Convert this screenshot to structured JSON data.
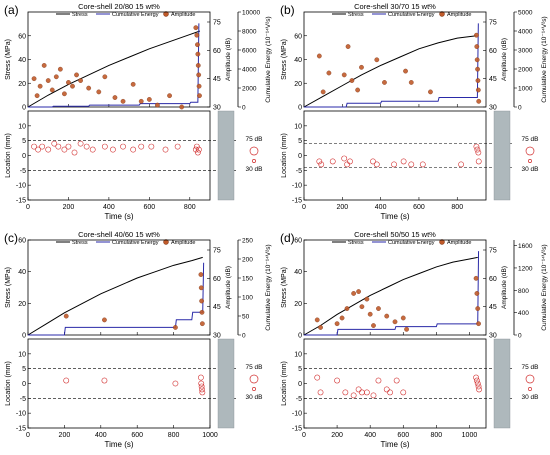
{
  "figure": {
    "panels": [
      {
        "label": "(a)",
        "title": "Core-shell 20/80 15 wt%"
      },
      {
        "label": "(b)",
        "title": "Core-shell 30/70 15 wt%"
      },
      {
        "label": "(c)",
        "title": "Core-shell 40/60 15 wt%"
      },
      {
        "label": "(d)",
        "title": "Core-shell 50/50 15 wt%"
      }
    ],
    "legend": {
      "stress": "Stress",
      "energy": "Cumulative Energy",
      "amplitude": "Amplitude"
    },
    "labels": {
      "stress_axis": "Stress (MPa)",
      "amplitude_axis": "Amplitude (dB)",
      "energy_axis": "Cumulative Energy (10⁻¹⁴V²s)",
      "location_axis": "Location (mm)",
      "time_axis": "Time (s)",
      "size_high": "75 dB",
      "size_low": "30 dB"
    },
    "colors": {
      "stress": "#000000",
      "energy": "#2a2aa8",
      "amp_fill": "#c05a2a",
      "amp_edge": "#d23030",
      "dashed": "#000000"
    }
  },
  "chart_data": [
    {
      "type": "scatter",
      "title": "Core-shell 20/80 15 wt%",
      "xlabel": "Time (s)",
      "xlim": [
        0,
        900
      ],
      "xticks": [
        0,
        200,
        400,
        600,
        800
      ],
      "stress_ylim": [
        0,
        80
      ],
      "stress_ticks": [
        0,
        20,
        40,
        60
      ],
      "amp_ticks": [
        30,
        45,
        60,
        75
      ],
      "energy_ylim": [
        0,
        10000
      ],
      "energy_ticks": [
        0,
        2000,
        4000,
        6000,
        8000,
        10000
      ],
      "stress_curve": {
        "x": [
          0,
          100,
          200,
          300,
          400,
          500,
          600,
          700,
          800,
          850
        ],
        "y": [
          0,
          10,
          19,
          27,
          35,
          42,
          49,
          55,
          61,
          64
        ]
      },
      "energy_curve": {
        "x": [
          0,
          120,
          125,
          300,
          305,
          550,
          555,
          800,
          805,
          840,
          845
        ],
        "y": [
          0,
          0,
          80,
          80,
          200,
          200,
          350,
          350,
          500,
          500,
          8800
        ]
      },
      "amplitude_events": {
        "x": [
          30,
          45,
          60,
          80,
          100,
          120,
          140,
          160,
          180,
          200,
          220,
          240,
          260,
          300,
          350,
          380,
          430,
          470,
          520,
          560,
          600,
          640,
          700,
          760,
          830,
          835,
          838,
          840,
          842,
          844,
          846,
          848
        ],
        "y": [
          45,
          36,
          41,
          52,
          44,
          39,
          46,
          50,
          37,
          43,
          41,
          47,
          44,
          40,
          38,
          46,
          35,
          33,
          42,
          33,
          34,
          31,
          36,
          30,
          72,
          68,
          63,
          58,
          52,
          47,
          41,
          36
        ]
      },
      "location_ylim": [
        -15,
        15
      ],
      "location_ticks": [
        -15,
        -10,
        -5,
        0,
        5,
        10
      ],
      "dashed_levels": [
        5,
        -5
      ],
      "location_events": {
        "x": [
          30,
          50,
          70,
          100,
          130,
          150,
          180,
          200,
          230,
          260,
          290,
          320,
          380,
          420,
          470,
          520,
          560,
          610,
          680,
          740,
          830,
          835,
          840,
          845
        ],
        "y": [
          3,
          2,
          3,
          2,
          4,
          3,
          2,
          3,
          1,
          4,
          3,
          2,
          3,
          2,
          3,
          2,
          3,
          3,
          2,
          3,
          2,
          3,
          1,
          2
        ]
      }
    },
    {
      "type": "scatter",
      "title": "Core-shell 30/70 15 wt%",
      "xlabel": "Time (s)",
      "xlim": [
        0,
        950
      ],
      "xticks": [
        0,
        200,
        400,
        600,
        800
      ],
      "stress_ylim": [
        0,
        80
      ],
      "stress_ticks": [
        0,
        20,
        40,
        60
      ],
      "amp_ticks": [
        30,
        45,
        60,
        75
      ],
      "energy_ylim": [
        0,
        5000
      ],
      "energy_ticks": [
        0,
        1000,
        2000,
        3000,
        4000,
        5000
      ],
      "stress_curve": {
        "x": [
          0,
          100,
          200,
          300,
          400,
          500,
          600,
          700,
          800,
          900
        ],
        "y": [
          0,
          9,
          18,
          27,
          35,
          42,
          49,
          54,
          58,
          60
        ]
      },
      "energy_curve": {
        "x": [
          0,
          220,
          225,
          400,
          405,
          700,
          705,
          905,
          910
        ],
        "y": [
          0,
          0,
          200,
          200,
          300,
          300,
          500,
          500,
          4400
        ]
      },
      "amplitude_events": {
        "x": [
          80,
          100,
          130,
          210,
          230,
          250,
          280,
          300,
          380,
          420,
          530,
          560,
          660,
          900,
          902,
          904,
          906,
          908,
          910,
          912
        ],
        "y": [
          57,
          38,
          48,
          47,
          62,
          44,
          39,
          51,
          55,
          43,
          49,
          43,
          38,
          68,
          62,
          55,
          50,
          44,
          39,
          33
        ]
      },
      "location_ylim": [
        -15,
        15
      ],
      "location_ticks": [
        -15,
        -10,
        -5,
        0,
        5,
        10
      ],
      "dashed_levels": [
        4,
        -4
      ],
      "location_events": {
        "x": [
          80,
          90,
          150,
          210,
          225,
          240,
          360,
          380,
          470,
          520,
          560,
          620,
          820,
          900,
          905,
          910,
          912
        ],
        "y": [
          -2,
          -3,
          -2,
          -1,
          -3,
          -2,
          -2,
          -3,
          -3,
          -2,
          -3,
          -3,
          -3,
          3,
          2,
          1,
          -2
        ]
      }
    },
    {
      "type": "scatter",
      "title": "Core-shell 40/60 15 wt%",
      "xlabel": "Time (s)",
      "xlim": [
        0,
        1000
      ],
      "xticks": [
        0,
        200,
        400,
        600,
        800,
        1000
      ],
      "stress_ylim": [
        0,
        60
      ],
      "stress_ticks": [
        0,
        20,
        40,
        60
      ],
      "amp_ticks": [
        30,
        45,
        60,
        75
      ],
      "energy_ylim": [
        0,
        250
      ],
      "energy_ticks": [
        0,
        50,
        100,
        150,
        200,
        250
      ],
      "stress_curve": {
        "x": [
          0,
          100,
          200,
          300,
          400,
          500,
          600,
          700,
          800,
          900,
          960
        ],
        "y": [
          0,
          7,
          14,
          20,
          26,
          31,
          36,
          40,
          44,
          47,
          49
        ]
      },
      "energy_curve": {
        "x": [
          0,
          200,
          205,
          810,
          815,
          900,
          905,
          960,
          965
        ],
        "y": [
          0,
          0,
          20,
          20,
          40,
          40,
          60,
          60,
          190
        ]
      },
      "amplitude_events": {
        "x": [
          210,
          420,
          810,
          950,
          952,
          954,
          956,
          958
        ],
        "y": [
          40,
          38,
          34,
          62,
          55,
          48,
          42,
          36
        ]
      },
      "location_ylim": [
        -15,
        15
      ],
      "location_ticks": [
        -15,
        -10,
        -5,
        0,
        5,
        10
      ],
      "dashed_levels": [
        5,
        -5
      ],
      "location_events": {
        "x": [
          210,
          420,
          810,
          950,
          952,
          954,
          956,
          958
        ],
        "y": [
          1,
          1,
          0,
          2,
          0,
          -1,
          -2,
          -3
        ]
      }
    },
    {
      "type": "scatter",
      "title": "Core-shell 50/50 15 wt%",
      "xlabel": "Time (s)",
      "xlim": [
        0,
        1100
      ],
      "xticks": [
        0,
        200,
        400,
        600,
        800,
        1000
      ],
      "stress_ylim": [
        0,
        60
      ],
      "stress_ticks": [
        0,
        20,
        40,
        60
      ],
      "amp_ticks": [
        30,
        45,
        60,
        75
      ],
      "energy_ylim": [
        0,
        1700
      ],
      "energy_ticks": [
        0,
        400,
        800,
        1200,
        1600
      ],
      "stress_curve": {
        "x": [
          0,
          100,
          200,
          300,
          400,
          500,
          600,
          700,
          800,
          900,
          1000,
          1050
        ],
        "y": [
          0,
          6,
          13,
          19,
          25,
          30,
          35,
          39,
          43,
          46,
          48,
          49
        ]
      },
      "energy_curve": {
        "x": [
          0,
          200,
          205,
          550,
          555,
          800,
          805,
          1050,
          1055
        ],
        "y": [
          0,
          0,
          100,
          100,
          150,
          150,
          200,
          200,
          1500
        ]
      },
      "amplitude_events": {
        "x": [
          80,
          100,
          200,
          230,
          260,
          300,
          330,
          350,
          380,
          400,
          420,
          450,
          500,
          550,
          600,
          620,
          1040,
          1045,
          1050,
          1055
        ],
        "y": [
          38,
          34,
          36,
          39,
          44,
          52,
          53,
          45,
          49,
          41,
          35,
          44,
          40,
          37,
          39,
          33,
          60,
          52,
          44,
          36
        ]
      },
      "location_ylim": [
        -15,
        15
      ],
      "location_ticks": [
        -15,
        -10,
        -5,
        0,
        5,
        10
      ],
      "dashed_levels": [
        5,
        -5
      ],
      "location_events": {
        "x": [
          80,
          100,
          200,
          250,
          300,
          330,
          350,
          380,
          420,
          450,
          500,
          520,
          560,
          600,
          1040,
          1045,
          1050,
          1055,
          1058
        ],
        "y": [
          2,
          -3,
          1,
          -3,
          -4,
          -2,
          -3,
          -3,
          -4,
          1,
          -2,
          -3,
          1,
          -3,
          2,
          1,
          0,
          -1,
          -2
        ]
      }
    }
  ]
}
